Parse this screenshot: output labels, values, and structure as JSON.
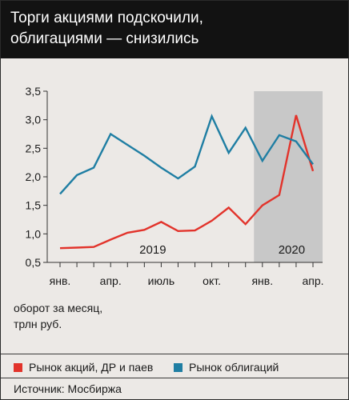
{
  "header": {
    "title_line1": "Торги акциями подскочили,",
    "title_line2": "облигациями — снизились"
  },
  "unit_note": {
    "line1": "оборот за месяц,",
    "line2": "трлн руб."
  },
  "source": "Источник: Мосбиржа",
  "colors": {
    "stocks": "#e2332b",
    "bonds": "#1f7ea3",
    "shade": "#c8c8c8",
    "background": "#ece9e6",
    "title_bg": "#121212"
  },
  "chart_data": {
    "type": "line",
    "title": "Торги акциями подскочили, облигациями — снизились",
    "ylabel": "оборот за месяц, трлн руб.",
    "ylim": [
      0.5,
      3.5
    ],
    "y_ticks": [
      "0,5",
      "1,0",
      "1,5",
      "2,0",
      "2,5",
      "3,0",
      "3,5"
    ],
    "y_tick_values": [
      0.5,
      1.0,
      1.5,
      2.0,
      2.5,
      3.0,
      3.5
    ],
    "x": [
      "2019-01",
      "2019-02",
      "2019-03",
      "2019-04",
      "2019-05",
      "2019-06",
      "2019-07",
      "2019-08",
      "2019-09",
      "2019-10",
      "2019-11",
      "2019-12",
      "2020-01",
      "2020-02",
      "2020-03",
      "2020-04"
    ],
    "x_tick_labels": [
      {
        "label": "янв.",
        "x": "2019-01"
      },
      {
        "label": "апр.",
        "x": "2019-04"
      },
      {
        "label": "июль",
        "x": "2019-07"
      },
      {
        "label": "окт.",
        "x": "2019-10"
      },
      {
        "label": "янв.",
        "x": "2020-01"
      },
      {
        "label": "апр.",
        "x": "2020-04"
      }
    ],
    "periods": [
      {
        "label": "2019",
        "from": "2019-01",
        "to": "2019-12",
        "shaded": false
      },
      {
        "label": "2020",
        "from": "2020-01",
        "to": "2020-04",
        "shaded": true
      }
    ],
    "series": [
      {
        "name": "Рынок акций, ДР и паев",
        "color": "#e2332b",
        "values": [
          0.75,
          0.76,
          0.77,
          0.9,
          1.02,
          1.07,
          1.21,
          1.05,
          1.06,
          1.23,
          1.46,
          1.17,
          1.5,
          1.68,
          3.08,
          2.1
        ]
      },
      {
        "name": "Рынок облигаций",
        "color": "#1f7ea3",
        "values": [
          1.7,
          2.03,
          2.16,
          2.75,
          2.56,
          2.37,
          2.16,
          1.97,
          2.18,
          3.06,
          2.42,
          2.86,
          2.28,
          2.73,
          2.62,
          2.22
        ]
      }
    ],
    "grid": false,
    "legend_position": "bottom"
  }
}
